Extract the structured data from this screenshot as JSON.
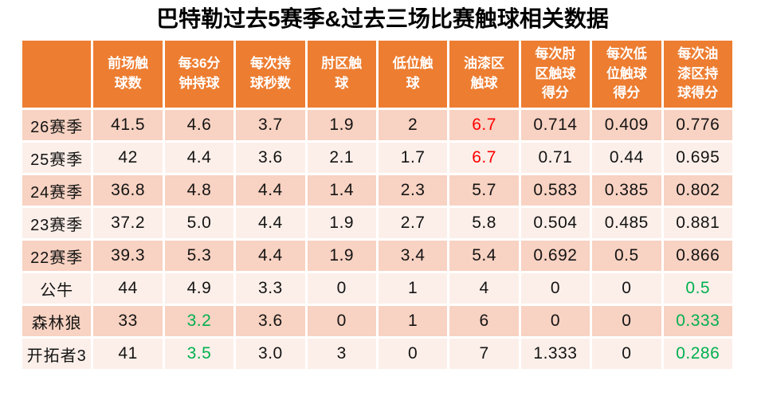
{
  "colors": {
    "header_bg": "#ED7D31",
    "header_text": "#FFFFFF",
    "band_dark": "#F8D2C2",
    "band_light": "#FCEFE9",
    "title_text": "#000000",
    "body_text": "#141414",
    "highlight_red": "#FF0000",
    "highlight_green": "#00B050"
  },
  "chart_data": {
    "type": "table",
    "title": "巴特勒过去5赛季&过去三场比赛触球相关数据",
    "columns": [
      "",
      "前场触球数",
      "每36分钟持球",
      "每次持球秒数",
      "肘区触球",
      "低位触球",
      "油漆区触球",
      "每次肘区触球得分",
      "每次低位触球得分",
      "每次油漆区持球得分"
    ],
    "rows": [
      {
        "label": "26赛季",
        "values": [
          "41.5",
          "4.6",
          "3.7",
          "1.9",
          "2",
          "6.7",
          "0.714",
          "0.409",
          "0.776"
        ]
      },
      {
        "label": "25赛季",
        "values": [
          "42",
          "4.4",
          "3.6",
          "2.1",
          "1.7",
          "6.7",
          "0.71",
          "0.44",
          "0.695"
        ]
      },
      {
        "label": "24赛季",
        "values": [
          "36.8",
          "4.8",
          "4.4",
          "1.4",
          "2.3",
          "5.7",
          "0.583",
          "0.385",
          "0.802"
        ]
      },
      {
        "label": "23赛季",
        "values": [
          "37.2",
          "5.0",
          "4.4",
          "1.9",
          "2.7",
          "5.8",
          "0.504",
          "0.485",
          "0.881"
        ]
      },
      {
        "label": "22赛季",
        "values": [
          "39.3",
          "5.3",
          "4.4",
          "1.9",
          "3.4",
          "5.4",
          "0.692",
          "0.5",
          "0.866"
        ]
      },
      {
        "label": "公牛",
        "values": [
          "44",
          "4.9",
          "3.3",
          "0",
          "1",
          "4",
          "0",
          "0",
          "0.5"
        ]
      },
      {
        "label": "森林狼",
        "values": [
          "33",
          "3.2",
          "3.6",
          "0",
          "1",
          "6",
          "0",
          "0",
          "0.333"
        ]
      },
      {
        "label": "开拓者3",
        "values": [
          "41",
          "3.5",
          "3.0",
          "3",
          "0",
          "7",
          "1.333",
          "0",
          "0.286"
        ]
      }
    ],
    "highlights": [
      {
        "row": 0,
        "col": 5,
        "color": "red"
      },
      {
        "row": 1,
        "col": 5,
        "color": "red"
      },
      {
        "row": 5,
        "col": 8,
        "color": "green"
      },
      {
        "row": 6,
        "col": 1,
        "color": "green"
      },
      {
        "row": 6,
        "col": 8,
        "color": "green"
      },
      {
        "row": 7,
        "col": 1,
        "color": "green"
      },
      {
        "row": 7,
        "col": 8,
        "color": "green"
      }
    ],
    "layout": {
      "banding": "rows",
      "first_band": "dark",
      "grid": "white-dashed",
      "legend": "none"
    }
  }
}
